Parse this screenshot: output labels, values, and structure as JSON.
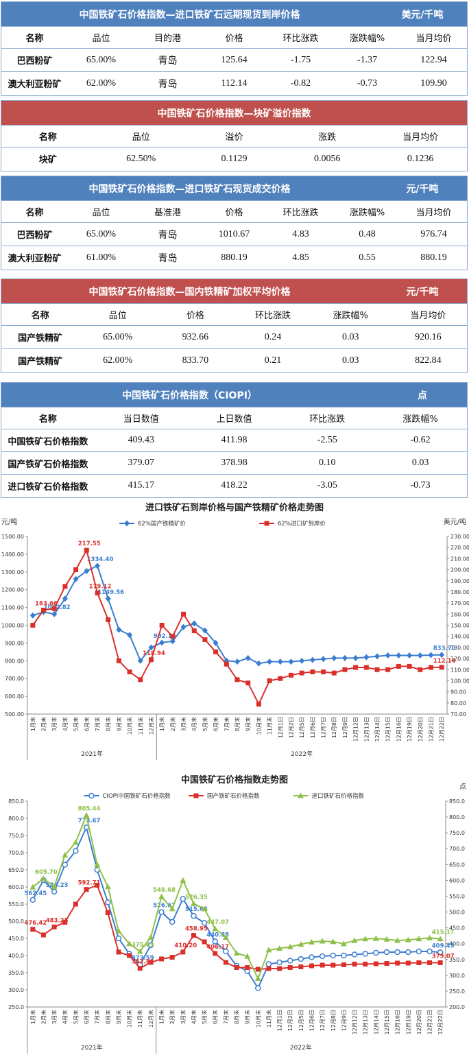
{
  "tables": [
    {
      "title": "中国铁矿石价格指数—进口铁矿石远期现货到岸价格",
      "unit": "美元/千吨",
      "header": [
        "名称",
        "品位",
        "目的港",
        "价格",
        "环比涨跌",
        "涨跌幅%",
        "当月均价"
      ],
      "rows": [
        [
          "巴西粉矿",
          "65.00%",
          "青岛",
          "125.64",
          "-1.75",
          "-1.37",
          "122.94"
        ],
        [
          "澳大利亚粉矿",
          "62.00%",
          "青岛",
          "112.14",
          "-0.82",
          "-0.73",
          "109.90"
        ]
      ]
    },
    {
      "title": "中国铁矿石价格指数—块矿溢价指数",
      "header": [
        "名称",
        "品位",
        "溢价",
        "涨跌",
        "当月均价"
      ],
      "rows": [
        [
          "块矿",
          "62.50%",
          "0.1129",
          "0.0056",
          "0.1236"
        ]
      ]
    },
    {
      "title": "中国铁矿石价格指数—进口铁矿石现货成交价格",
      "unit": "元/千吨",
      "header": [
        "名称",
        "品位",
        "基准港",
        "价格",
        "环比涨跌",
        "涨跌幅%",
        "当月均价"
      ],
      "rows": [
        [
          "巴西粉矿",
          "65.00%",
          "青岛",
          "1010.67",
          "4.83",
          "0.48",
          "976.74"
        ],
        [
          "澳大利亚粉矿",
          "61.00%",
          "青岛",
          "880.19",
          "4.85",
          "0.55",
          "880.19"
        ]
      ]
    },
    {
      "title": "中国铁矿石价格指数—国内铁精矿加权平均价格",
      "unit": "元/千吨",
      "header": [
        "名称",
        "品位",
        "价格",
        "环比涨跌",
        "涨跌幅%",
        "当月均价"
      ],
      "rows": [
        [
          "国产铁精矿",
          "65.00%",
          "932.66",
          "0.24",
          "0.03",
          "920.16"
        ],
        [
          "国产铁精矿",
          "62.00%",
          "833.70",
          "0.21",
          "0.03",
          "822.84"
        ]
      ]
    },
    {
      "title": "中国铁矿石价格指数（CIOPI）",
      "unit": "点",
      "header": [
        "名称",
        "当日数值",
        "上日数值",
        "环比涨跌",
        "涨跌幅%"
      ],
      "rows": [
        [
          "中国铁矿石价格指数",
          "409.43",
          "411.98",
          "-2.55",
          "-0.62"
        ],
        [
          "国产铁矿石价格指数",
          "379.07",
          "378.98",
          "0.10",
          "0.03"
        ],
        [
          "进口铁矿石价格指数",
          "415.17",
          "418.22",
          "-3.05",
          "-0.73"
        ]
      ]
    }
  ],
  "chart_data": [
    {
      "type": "line",
      "title": "进口铁矿石到岸价格与国产铁精矿价格走势图",
      "y_label": "元/吨",
      "y2_label": "美元/吨",
      "legend": "top",
      "categories": [
        "1月末",
        "2月末",
        "3月末",
        "4月末",
        "5月末",
        "6月末",
        "7月末",
        "8月末",
        "9月末",
        "10月末",
        "11月末",
        "12月末",
        "1月末",
        "2月末",
        "3月末",
        "4月末",
        "5月末",
        "6月末",
        "7月末",
        "8月末",
        "9月末",
        "10月末",
        "11月末",
        "12月1日",
        "12月2日",
        "12月5日",
        "12月6日",
        "12月7日",
        "12月8日",
        "12月9日",
        "12月12日",
        "12月13日",
        "12月14日",
        "12月15日",
        "12月16日",
        "12月19日",
        "12月20日",
        "12月21日",
        "12月22日"
      ],
      "x_groups": [
        "2021年",
        "2022年"
      ],
      "series": [
        {
          "name": "62%国产铁精矿价",
          "color": "#3a7dd0",
          "marker": "diamond",
          "values": [
            1055,
            1075,
            1062.82,
            1150,
            1260,
            1305,
            1334.4,
            1149.56,
            975,
            945,
            800,
            875,
            902.16,
            910,
            990,
            1010,
            970,
            900,
            800,
            795,
            815,
            785,
            795,
            795,
            795,
            800,
            805,
            810,
            815,
            815,
            815,
            820,
            825,
            830,
            830,
            830,
            830,
            832,
            833.7
          ],
          "value_labels": [
            null,
            null,
            "1062.82",
            null,
            null,
            null,
            "1334.40",
            "1149.56",
            null,
            null,
            null,
            null,
            "902.16",
            null,
            null,
            null,
            null,
            null,
            null,
            null,
            null,
            null,
            null,
            null,
            null,
            null,
            null,
            null,
            null,
            null,
            null,
            null,
            null,
            null,
            null,
            null,
            null,
            null,
            "833.70"
          ]
        },
        {
          "name": "62%进口矿到岸价",
          "color": "#d9302c",
          "marker": "square",
          "axis": "y2",
          "values": [
            150,
            163.66,
            165,
            185,
            200,
            217.55,
            179.12,
            155,
            118,
            108,
            101,
            118.94,
            150,
            140,
            160,
            145,
            137,
            126,
            115,
            101,
            98,
            79,
            100,
            102,
            105,
            107,
            108,
            108,
            107,
            110,
            112,
            112,
            110,
            110,
            113,
            113,
            110,
            112,
            112.14
          ],
          "value_labels": [
            null,
            "163.66",
            null,
            null,
            null,
            "217.55",
            "179.12",
            null,
            null,
            null,
            null,
            "118.94",
            null,
            null,
            null,
            null,
            null,
            null,
            null,
            null,
            null,
            null,
            null,
            null,
            null,
            null,
            null,
            null,
            null,
            null,
            null,
            null,
            null,
            null,
            null,
            null,
            null,
            null,
            "112.14"
          ]
        }
      ],
      "ylim": [
        500,
        1500
      ],
      "yticks": [
        {
          "value": 500,
          "label": "500.00"
        },
        {
          "value": 600,
          "label": "600.00"
        },
        {
          "value": 700,
          "label": "700.00"
        },
        {
          "value": 800,
          "label": "800.00"
        },
        {
          "value": 900,
          "label": "900.00"
        },
        {
          "value": 1000,
          "label": "1000.00"
        },
        {
          "value": 1100,
          "label": "1100.00"
        },
        {
          "value": 1200,
          "label": "1200.00"
        },
        {
          "value": 1300,
          "label": "1300.00"
        },
        {
          "value": 1400,
          "label": "1400.00"
        },
        {
          "value": 1500,
          "label": "1500.00"
        }
      ],
      "y2lim": [
        70,
        230
      ],
      "y2ticks": [
        {
          "value": 70,
          "label": "70.00"
        },
        {
          "value": 80,
          "label": "80.00"
        },
        {
          "value": 90,
          "label": "90.00"
        },
        {
          "value": 100,
          "label": "100.00"
        },
        {
          "value": 110,
          "label": "110.00"
        },
        {
          "value": 120,
          "label": "120.00"
        },
        {
          "value": 130,
          "label": "130.00"
        },
        {
          "value": 140,
          "label": "140.00"
        },
        {
          "value": 150,
          "label": "150.00"
        },
        {
          "value": 160,
          "label": "160.00"
        },
        {
          "value": 170,
          "label": "170.00"
        },
        {
          "value": 180,
          "label": "180.00"
        },
        {
          "value": 190,
          "label": "190.00"
        },
        {
          "value": 200,
          "label": "200.00"
        },
        {
          "value": 210,
          "label": "210.00"
        },
        {
          "value": 220,
          "label": "220.00"
        },
        {
          "value": 230,
          "label": "230.00"
        }
      ],
      "grid": false
    },
    {
      "type": "line",
      "title": "中国铁矿石价格指数走势图",
      "y2_label": "点",
      "legend": "top",
      "categories": [
        "1月末",
        "2月末",
        "3月末",
        "4月末",
        "5月末",
        "6月末",
        "7月末",
        "8月末",
        "9月末",
        "10月末",
        "11月末",
        "12月末",
        "1月末",
        "2月末",
        "3月末",
        "4月末",
        "5月末",
        "6月末",
        "7月末",
        "8月末",
        "9月末",
        "10月末",
        "11月末",
        "12月1日",
        "12月2日",
        "12月5日",
        "12月6日",
        "12月7日",
        "12月8日",
        "12月9日",
        "12月12日",
        "12月13日",
        "12月14日",
        "12月15日",
        "12月16日",
        "12月19日",
        "12月20日",
        "12月21日",
        "12月22日"
      ],
      "x_groups": [
        "2021年",
        "2022年"
      ],
      "series": [
        {
          "name": "CIOPI中国铁矿石价格指数",
          "color": "#3a7dd0",
          "marker": "circle",
          "values": [
            562.45,
            620,
            586.23,
            665,
            705,
            773.67,
            650,
            555,
            450,
            405,
            373.59,
            430,
            526.67,
            498,
            565,
            515.64,
            495,
            440.88,
            412,
            370,
            355,
            305,
            375,
            380,
            385,
            390,
            395,
            398,
            400,
            400,
            403,
            405,
            408,
            410,
            410,
            410,
            412,
            411.98,
            409.43
          ],
          "value_labels": [
            "562.45",
            null,
            "586.23",
            null,
            null,
            "773.67",
            null,
            null,
            null,
            null,
            "373.59",
            null,
            "526.67",
            null,
            null,
            "515.64",
            null,
            "440.88",
            null,
            null,
            null,
            null,
            null,
            null,
            null,
            null,
            null,
            null,
            null,
            null,
            null,
            null,
            null,
            null,
            null,
            null,
            null,
            null,
            "409.43"
          ]
        },
        {
          "name": "国产铁矿石价格指数",
          "color": "#d9302c",
          "marker": "square",
          "values": [
            476.42,
            460,
            483.25,
            497,
            550,
            592.71,
            605,
            525,
            410,
            400,
            362.84,
            380,
            390,
            395,
            410.2,
            458.95,
            440,
            406.17,
            380,
            365,
            365,
            360,
            362,
            362,
            365,
            367,
            370,
            372,
            372,
            373,
            375,
            375,
            376,
            377,
            378,
            378,
            379,
            378.98,
            379.07
          ],
          "value_labels": [
            "476.42",
            null,
            "483.25",
            null,
            null,
            "592.71",
            null,
            null,
            null,
            null,
            "362.84",
            null,
            null,
            null,
            "410.20",
            "458.95",
            null,
            "406.17",
            null,
            null,
            null,
            null,
            null,
            null,
            null,
            null,
            null,
            null,
            null,
            null,
            null,
            null,
            null,
            null,
            null,
            null,
            null,
            null,
            "379.07"
          ]
        },
        {
          "name": "进口铁矿石价格指数",
          "color": "#8fc04a",
          "marker": "triangle",
          "axis": "y2",
          "values": [
            578.7,
            605.7,
            580,
            680,
            720,
            805.44,
            650,
            580,
            440,
            400,
            375.63,
            420,
            548.68,
            510,
            600,
            526.35,
            510,
            447.07,
            420,
            370,
            360,
            290,
            380,
            385,
            390,
            398,
            405,
            408,
            406,
            400,
            410,
            415,
            416,
            414,
            410,
            412,
            415,
            418.22,
            415.17
          ],
          "value_labels": [
            null,
            "605.70",
            null,
            null,
            null,
            "805.44",
            null,
            null,
            null,
            null,
            "375.63",
            null,
            "548.68",
            null,
            null,
            "526.35",
            null,
            "447.07",
            null,
            null,
            null,
            null,
            null,
            null,
            null,
            null,
            null,
            null,
            null,
            null,
            null,
            null,
            null,
            null,
            null,
            null,
            null,
            null,
            "415.17"
          ]
        }
      ],
      "ylim": [
        250,
        850
      ],
      "yticks": [
        {
          "value": 250,
          "label": "250.0"
        },
        {
          "value": 300,
          "label": "300.0"
        },
        {
          "value": 350,
          "label": "350.0"
        },
        {
          "value": 400,
          "label": "400.0"
        },
        {
          "value": 450,
          "label": "450.0"
        },
        {
          "value": 500,
          "label": "500.0"
        },
        {
          "value": 550,
          "label": "550.0"
        },
        {
          "value": 600,
          "label": "600.0"
        },
        {
          "value": 650,
          "label": "650.0"
        },
        {
          "value": 700,
          "label": "700.0"
        },
        {
          "value": 750,
          "label": "750.0"
        },
        {
          "value": 800,
          "label": "800.0"
        },
        {
          "value": 850,
          "label": "850.0"
        }
      ],
      "y2lim": [
        200,
        850
      ],
      "y2ticks": [
        {
          "value": 200,
          "label": "200.0"
        },
        {
          "value": 250,
          "label": "250.0"
        },
        {
          "value": 300,
          "label": "300.0"
        },
        {
          "value": 350,
          "label": "350.0"
        },
        {
          "value": 400,
          "label": "400.0"
        },
        {
          "value": 450,
          "label": "450.0"
        },
        {
          "value": 500,
          "label": "500.0"
        },
        {
          "value": 550,
          "label": "550.0"
        },
        {
          "value": 600,
          "label": "600.0"
        },
        {
          "value": 650,
          "label": "650.0"
        },
        {
          "value": 700,
          "label": "700.0"
        },
        {
          "value": 750,
          "label": "750.0"
        },
        {
          "value": 800,
          "label": "800.0"
        },
        {
          "value": 850,
          "label": "850.0"
        }
      ],
      "grid": false
    }
  ]
}
